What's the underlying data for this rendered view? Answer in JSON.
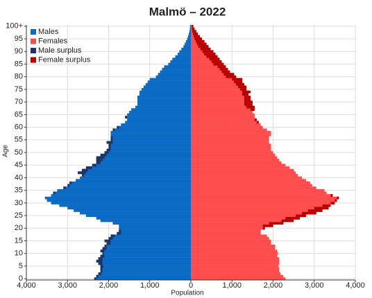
{
  "chart_data": {
    "type": "pyramid",
    "title": "Malmö – 2022",
    "x_label": "Population",
    "y_label": "Age",
    "categories": [
      "0",
      null,
      null,
      null,
      null,
      "5",
      null,
      null,
      null,
      null,
      "10",
      null,
      null,
      null,
      null,
      "15",
      null,
      null,
      null,
      null,
      "20",
      null,
      null,
      null,
      null,
      "25",
      null,
      null,
      null,
      null,
      "30",
      null,
      null,
      null,
      null,
      "35",
      null,
      null,
      null,
      null,
      "40",
      null,
      null,
      null,
      null,
      "45",
      null,
      null,
      null,
      null,
      "50",
      null,
      null,
      null,
      null,
      "55",
      null,
      null,
      null,
      null,
      "60",
      null,
      null,
      null,
      null,
      "65",
      null,
      null,
      null,
      null,
      "70",
      null,
      null,
      null,
      null,
      "75",
      null,
      null,
      null,
      null,
      "80",
      null,
      null,
      null,
      null,
      "85",
      null,
      null,
      null,
      null,
      "90",
      null,
      null,
      null,
      null,
      "95",
      null,
      null,
      null,
      null,
      "100+"
    ],
    "series": [
      {
        "name": "Males",
        "color": "#0b6bc4",
        "values": [
          2350,
          2300,
          2250,
          2200,
          2200,
          2200,
          2250,
          2300,
          2250,
          2200,
          2150,
          2200,
          2150,
          2100,
          2050,
          2100,
          2000,
          1950,
          1800,
          1750,
          1750,
          1750,
          1900,
          2200,
          2300,
          2550,
          2700,
          2850,
          3000,
          3200,
          3400,
          3500,
          3550,
          3400,
          3350,
          3250,
          3100,
          3000,
          2950,
          2800,
          2700,
          2650,
          2750,
          2650,
          2550,
          2400,
          2300,
          2300,
          2300,
          2200,
          2100,
          2050,
          2000,
          2000,
          2050,
          1950,
          1950,
          1950,
          1950,
          1900,
          1800,
          1700,
          1600,
          1550,
          1600,
          1550,
          1500,
          1450,
          1350,
          1300,
          1300,
          1300,
          1300,
          1250,
          1250,
          1200,
          1150,
          1100,
          1050,
          1000,
          850,
          800,
          750,
          700,
          650,
          550,
          500,
          450,
          380,
          320,
          280,
          230,
          180,
          150,
          120,
          90,
          70,
          50,
          35,
          25,
          20
        ]
      },
      {
        "name": "Females",
        "color": "#ff4d4d",
        "values": [
          2300,
          2250,
          2180,
          2150,
          2150,
          2130,
          2150,
          2150,
          2150,
          2100,
          2120,
          2100,
          2050,
          2050,
          1950,
          1950,
          1900,
          1850,
          1700,
          1700,
          1800,
          2000,
          2250,
          2500,
          2650,
          2800,
          3050,
          3200,
          3350,
          3400,
          3500,
          3550,
          3600,
          3450,
          3300,
          3250,
          3050,
          2950,
          2900,
          2800,
          2700,
          2600,
          2550,
          2500,
          2400,
          2300,
          2200,
          2150,
          2100,
          2050,
          2000,
          1950,
          1950,
          1950,
          1900,
          1900,
          1900,
          1950,
          1950,
          1850,
          1750,
          1700,
          1650,
          1600,
          1550,
          1550,
          1500,
          1550,
          1550,
          1500,
          1500,
          1450,
          1450,
          1400,
          1450,
          1350,
          1350,
          1300,
          1250,
          1250,
          1100,
          1050,
          950,
          900,
          850,
          800,
          750,
          700,
          650,
          600,
          550,
          480,
          430,
          380,
          330,
          270,
          220,
          170,
          130,
          90,
          60
        ]
      }
    ],
    "surplus": [
      {
        "name": "Male surplus",
        "color": "#1c3566"
      },
      {
        "name": "Female surplus",
        "color": "#b80000"
      }
    ],
    "xlim": [
      -4000,
      4000
    ],
    "xticks": [
      {
        "value": -4000,
        "label": "4,000"
      },
      {
        "value": -3000,
        "label": "3,000"
      },
      {
        "value": -2000,
        "label": "2,000"
      },
      {
        "value": -1000,
        "label": "1,000"
      },
      0,
      {
        "value": 1000,
        "label": "1,000"
      },
      {
        "value": 2000,
        "label": "2,000"
      },
      {
        "value": 3000,
        "label": "3,000"
      },
      {
        "value": 4000,
        "label": "4,000"
      }
    ],
    "grid": true
  }
}
